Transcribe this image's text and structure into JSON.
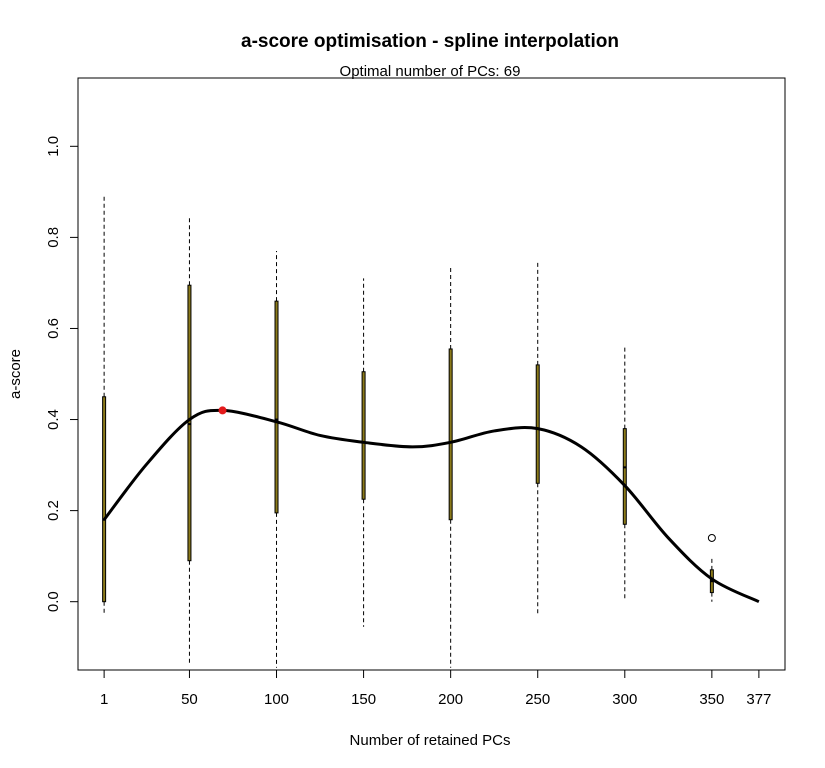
{
  "chart_data": {
    "type": "boxplot",
    "title": "a-score optimisation - spline interpolation",
    "subtitle": "Optimal number of PCs: 69",
    "xlabel": "Number of retained PCs",
    "ylabel": "a-score",
    "xlim": [
      -14,
      392
    ],
    "ylim": [
      -0.15,
      1.15
    ],
    "x_ticks": [
      1,
      50,
      100,
      150,
      200,
      250,
      300,
      350,
      377
    ],
    "y_ticks": [
      0.0,
      0.2,
      0.4,
      0.6,
      0.8,
      1.0
    ],
    "y_tick_labels": [
      "0.0",
      "0.2",
      "0.4",
      "0.6",
      "0.8",
      "1.0"
    ],
    "grid": false,
    "legend": "none",
    "boxes": [
      {
        "x": 1,
        "whisker_low": -0.025,
        "q1": 0.0,
        "median": 0.18,
        "q3": 0.45,
        "whisker_high": 0.89
      },
      {
        "x": 50,
        "whisker_low": -0.135,
        "q1": 0.09,
        "median": 0.39,
        "q3": 0.695,
        "whisker_high": 0.845
      },
      {
        "x": 100,
        "whisker_low": -0.145,
        "q1": 0.195,
        "median": 0.4,
        "q3": 0.66,
        "whisker_high": 0.77
      },
      {
        "x": 150,
        "whisker_low": -0.055,
        "q1": 0.225,
        "median": 0.35,
        "q3": 0.505,
        "whisker_high": 0.71
      },
      {
        "x": 200,
        "whisker_low": -0.145,
        "q1": 0.18,
        "median": 0.35,
        "q3": 0.555,
        "whisker_high": 0.735
      },
      {
        "x": 250,
        "whisker_low": -0.03,
        "q1": 0.26,
        "median": 0.38,
        "q3": 0.52,
        "whisker_high": 0.745
      },
      {
        "x": 300,
        "whisker_low": 0.005,
        "q1": 0.17,
        "median": 0.295,
        "q3": 0.38,
        "whisker_high": 0.56
      },
      {
        "x": 350,
        "whisker_low": 0.0,
        "q1": 0.02,
        "median": 0.045,
        "q3": 0.07,
        "whisker_high": 0.1
      }
    ],
    "outliers": [
      {
        "x": 350,
        "y": 0.14
      }
    ],
    "spline": {
      "x": [
        1,
        25,
        50,
        69,
        100,
        125,
        150,
        178,
        200,
        225,
        250,
        275,
        300,
        325,
        350,
        377
      ],
      "y": [
        0.18,
        0.3,
        0.4,
        0.42,
        0.395,
        0.365,
        0.35,
        0.34,
        0.35,
        0.375,
        0.38,
        0.34,
        0.255,
        0.14,
        0.05,
        0.0
      ]
    },
    "optimum": {
      "x": 69,
      "y": 0.42
    },
    "colors": {
      "curve": "#000000",
      "optimum": "#e41a1c",
      "box_fill": "#8b7a1a",
      "box_border": "#000000"
    }
  }
}
